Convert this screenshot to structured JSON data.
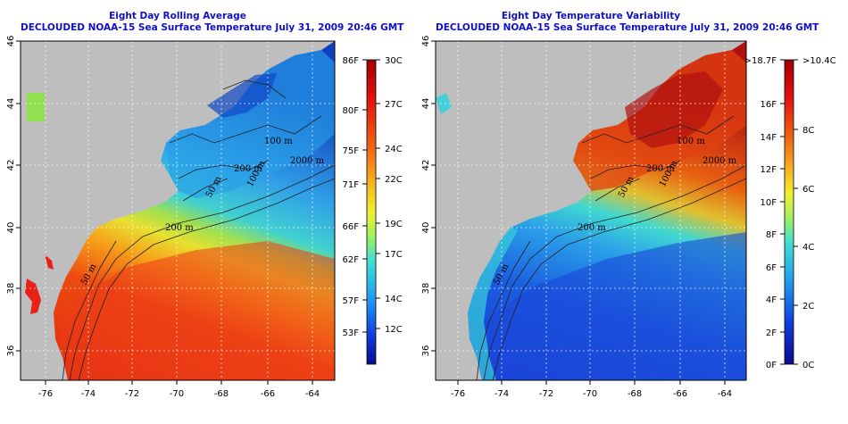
{
  "panels": [
    {
      "title_line1": "Eight Day Rolling Average",
      "title_line2": "DECLOUDED NOAA-15 Sea Surface Temperature July 31, 2009 20:46 GMT",
      "lon_ticks": [
        "-76",
        "-74",
        "-72",
        "-70",
        "-68",
        "-66",
        "-64"
      ],
      "lat_ticks": [
        "36",
        "38",
        "40",
        "42",
        "44",
        "46"
      ],
      "contour_labels": [
        "100 m",
        "200 m",
        "2000 m",
        "200 m",
        "50 m",
        "50 m",
        "100 m"
      ],
      "colorbar": {
        "f_labels": [
          "86F",
          "80F",
          "75F",
          "71F",
          "66F",
          "62F",
          "57F",
          "53F"
        ],
        "c_labels": [
          "30C",
          "27C",
          "24C",
          "22C",
          "19C",
          "17C",
          "14C",
          "12C"
        ]
      }
    },
    {
      "title_line1": "Eight Day Temperature Variability",
      "title_line2": "DECLOUDED NOAA-15 Sea Surface Temperature July 31, 2009 20:46 GMT",
      "lon_ticks": [
        "-76",
        "-74",
        "-72",
        "-70",
        "-68",
        "-66",
        "-64"
      ],
      "lat_ticks": [
        "36",
        "38",
        "40",
        "42",
        "44",
        "46"
      ],
      "contour_labels": [
        "100 m",
        "200 m",
        "2000 m",
        "200 m",
        "50 m",
        "50 m",
        "100 m"
      ],
      "colorbar": {
        "f_labels": [
          ">18.7F",
          "16F",
          "14F",
          "12F",
          "10F",
          "8F",
          "6F",
          "4F",
          "2F",
          "0F"
        ],
        "c_labels": [
          ">10.4C",
          "8C",
          "6C",
          "4C",
          "2C",
          "0C"
        ]
      }
    }
  ],
  "colors": {
    "title": "#1010c8",
    "land": "#bebebe",
    "grid": "#ffffff"
  }
}
